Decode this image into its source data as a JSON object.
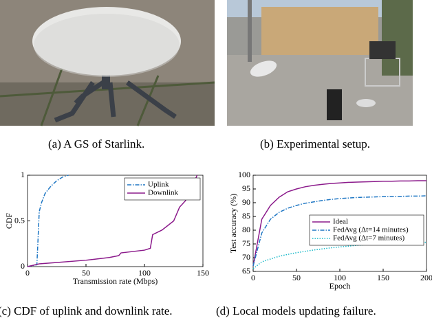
{
  "subfigures": [
    {
      "caption": "(a) A GS of Starlink."
    },
    {
      "caption": "(b) Experimental setup."
    },
    {
      "caption": "(c) CDF of uplink and downlink rate."
    },
    {
      "caption": "(d) Local models updating failure."
    }
  ],
  "chart_data": [
    {
      "type": "line",
      "xlabel": "Transmission rate (Mbps)",
      "ylabel": "CDF",
      "xlim": [
        0,
        150
      ],
      "xticks": [
        0,
        50,
        100,
        150
      ],
      "ylim": [
        0,
        1
      ],
      "yticks": [
        0,
        0.5,
        1
      ],
      "legend": "upper right",
      "series": [
        {
          "name": "Uplink",
          "color": "#1f77c4",
          "linestyle": "dashdot",
          "x": [
            0,
            8,
            9,
            10,
            12,
            15,
            20,
            25,
            30,
            35
          ],
          "values": [
            0,
            0.02,
            0.3,
            0.6,
            0.7,
            0.8,
            0.88,
            0.94,
            0.98,
            1
          ]
        },
        {
          "name": "Downlink",
          "color": "#8b1a8b",
          "linestyle": "solid",
          "x": [
            0,
            10,
            30,
            50,
            70,
            78,
            80,
            100,
            105,
            107,
            115,
            125,
            130,
            135,
            140,
            145
          ],
          "values": [
            0,
            0.03,
            0.05,
            0.07,
            0.1,
            0.12,
            0.15,
            0.18,
            0.2,
            0.35,
            0.4,
            0.5,
            0.65,
            0.72,
            0.85,
            1
          ]
        }
      ]
    },
    {
      "type": "line",
      "xlabel": "Epoch",
      "ylabel": "Test accuracy (%)",
      "xlim": [
        0,
        200
      ],
      "xticks": [
        0,
        50,
        100,
        150,
        200
      ],
      "ylim": [
        65,
        100
      ],
      "yticks": [
        65,
        70,
        75,
        80,
        85,
        90,
        95,
        100
      ],
      "legend": "center right",
      "series": [
        {
          "name": "Ideal",
          "color": "#8b1a8b",
          "linestyle": "solid",
          "x": [
            0,
            10,
            20,
            30,
            40,
            50,
            60,
            70,
            80,
            90,
            100,
            110,
            120,
            130,
            140,
            150,
            160,
            170,
            180,
            190,
            200
          ],
          "values": [
            67,
            84,
            89,
            92,
            94,
            95,
            95.8,
            96.3,
            96.7,
            97,
            97.2,
            97.4,
            97.5,
            97.6,
            97.7,
            97.8,
            97.8,
            97.9,
            97.9,
            98,
            98
          ]
        },
        {
          "name": "FedAvg (Δt=14 minutes)",
          "color": "#1f77c4",
          "linestyle": "dashdot",
          "x": [
            0,
            10,
            20,
            30,
            40,
            50,
            60,
            70,
            80,
            90,
            100,
            110,
            120,
            130,
            140,
            150,
            160,
            170,
            180,
            190,
            200
          ],
          "values": [
            67,
            79,
            84,
            86.5,
            88,
            89,
            89.8,
            90.3,
            90.8,
            91.2,
            91.5,
            91.7,
            91.9,
            92,
            92.1,
            92.2,
            92.3,
            92.3,
            92.4,
            92.4,
            92.5
          ]
        },
        {
          "name": "FedAvg (Δt=7 minutes)",
          "color": "#17b8c8",
          "linestyle": "dotted",
          "x": [
            0,
            10,
            20,
            30,
            40,
            50,
            60,
            70,
            80,
            90,
            100,
            110,
            120,
            130,
            140,
            150,
            160,
            170,
            180,
            190,
            200
          ],
          "values": [
            66,
            68.5,
            69.5,
            70.5,
            71.2,
            71.8,
            72.3,
            72.8,
            73.2,
            73.6,
            73.9,
            74.2,
            74.5,
            74.7,
            74.9,
            75.1,
            75.3,
            75.4,
            75.5,
            75.6,
            75.6
          ]
        }
      ]
    }
  ]
}
